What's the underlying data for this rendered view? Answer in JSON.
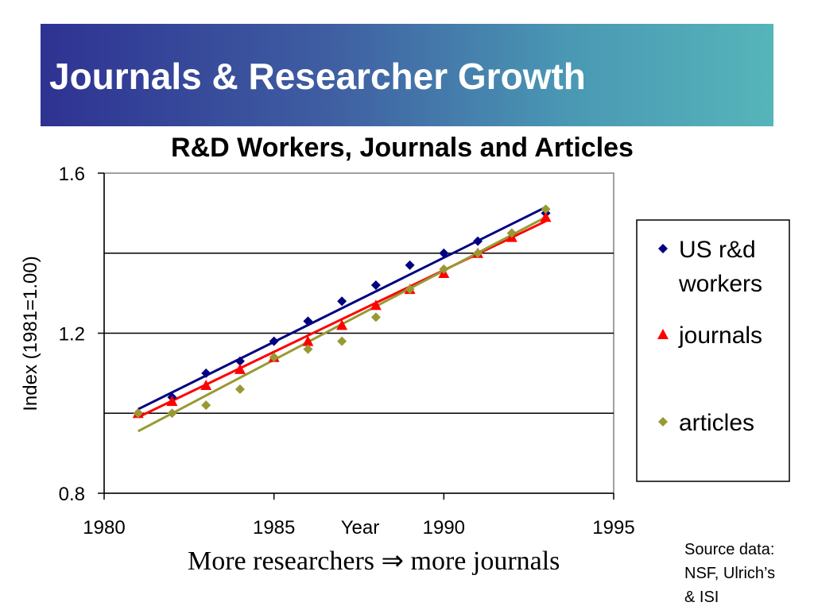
{
  "slide": {
    "title": "Journals & Researcher Growth",
    "caption": "More researchers ⇒ more journals",
    "source_lines": [
      "Source data:",
      "NSF, Ulrich’s",
      "& ISI"
    ]
  },
  "chart_data": {
    "type": "scatter",
    "title": "R&D Workers, Journals and Articles",
    "xlabel": "Year",
    "ylabel": "Index (1981=1.00)",
    "xlim": [
      1980,
      1995
    ],
    "ylim": [
      0.8,
      1.6
    ],
    "x_ticks": [
      1980,
      1985,
      1990,
      1995
    ],
    "y_tick_labels": [
      "0.8",
      "1.2",
      "1.6"
    ],
    "y_gridlines": [
      1.0,
      1.2,
      1.4
    ],
    "legend_position": "right",
    "series": [
      {
        "name": "US r&d workers",
        "legend_lines": [
          "US r&d",
          "workers"
        ],
        "marker": "diamond",
        "color": "#000080",
        "x": [
          1981,
          1982,
          1983,
          1984,
          1985,
          1986,
          1987,
          1988,
          1989,
          1990,
          1991,
          1992,
          1993
        ],
        "y": [
          1.0,
          1.04,
          1.1,
          1.13,
          1.18,
          1.23,
          1.28,
          1.32,
          1.37,
          1.4,
          1.43,
          1.45,
          1.5
        ],
        "trendline": [
          [
            1981,
            1.01
          ],
          [
            1993,
            1.515
          ]
        ]
      },
      {
        "name": "journals",
        "legend_lines": [
          "journals"
        ],
        "marker": "triangle",
        "color": "#ff0000",
        "x": [
          1981,
          1982,
          1983,
          1984,
          1985,
          1986,
          1987,
          1988,
          1989,
          1990,
          1991,
          1992,
          1993
        ],
        "y": [
          1.0,
          1.03,
          1.07,
          1.11,
          1.14,
          1.18,
          1.22,
          1.27,
          1.31,
          1.35,
          1.4,
          1.44,
          1.49
        ],
        "trendline": [
          [
            1981,
            0.99
          ],
          [
            1993,
            1.48
          ]
        ]
      },
      {
        "name": "articles",
        "legend_lines": [
          "articles"
        ],
        "marker": "diamond",
        "color": "#999933",
        "x": [
          1981,
          1982,
          1983,
          1984,
          1985,
          1986,
          1987,
          1988,
          1989,
          1990,
          1991,
          1992,
          1993
        ],
        "y": [
          1.0,
          1.0,
          1.02,
          1.06,
          1.14,
          1.16,
          1.18,
          1.24,
          1.31,
          1.36,
          1.4,
          1.45,
          1.51
        ],
        "trendline": [
          [
            1981,
            0.955
          ],
          [
            1993,
            1.49
          ]
        ]
      }
    ]
  }
}
